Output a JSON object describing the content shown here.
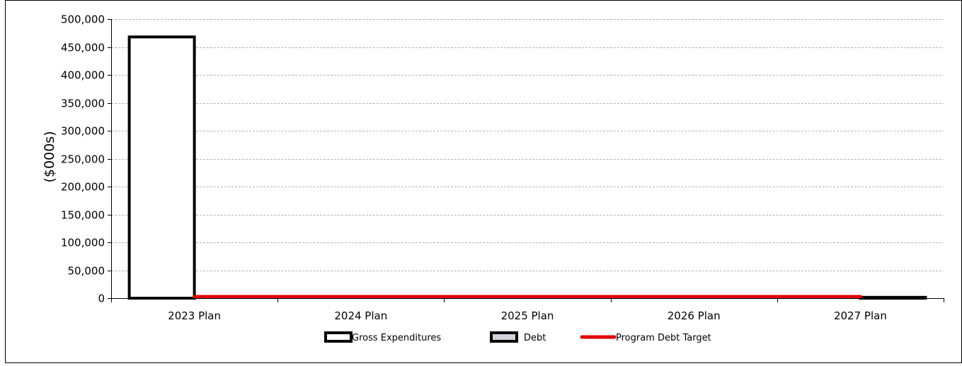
{
  "chart_data": {
    "type": "bar",
    "categories": [
      "2023 Plan",
      "2024 Plan",
      "2025 Plan",
      "2026 Plan",
      "2027 Plan"
    ],
    "series": [
      {
        "name": "Gross Expenditures",
        "kind": "bar",
        "values": [
          468000,
          0,
          0,
          0,
          0
        ],
        "color": "#ffffff"
      },
      {
        "name": "Debt",
        "kind": "bar",
        "values": [
          0,
          0,
          0,
          0,
          1500
        ],
        "color": "#d0d3dc"
      },
      {
        "name": "Program Debt Target",
        "kind": "line",
        "values": [
          2500,
          2500,
          2500,
          2500,
          2500
        ],
        "color": "#e00000"
      }
    ],
    "ylabel": "($000s)",
    "ylim": [
      0,
      500000
    ],
    "yticks": [
      0,
      50000,
      100000,
      150000,
      200000,
      250000,
      300000,
      350000,
      400000,
      450000,
      500000
    ],
    "ytick_labels": [
      "0",
      "50,000",
      "100,000",
      "150,000",
      "200,000",
      "250,000",
      "300,000",
      "350,000",
      "400,000",
      "450,000",
      "500,000"
    ],
    "grid": true,
    "legend_position": "bottom"
  }
}
